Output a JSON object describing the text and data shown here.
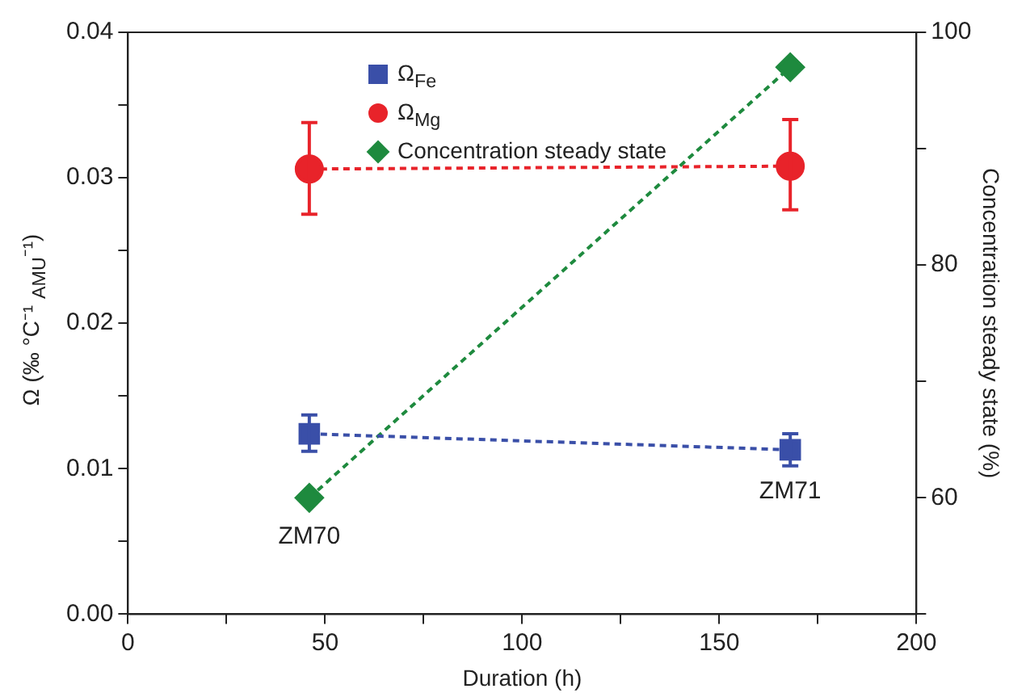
{
  "chart_data": {
    "type": "line",
    "xlabel": "Duration (h)",
    "ylabel": "Ω (‰ °C⁻¹ $_{AMU}$⁻¹)",
    "y2label": "Concentration steady state (%)",
    "xlim": [
      0,
      200
    ],
    "xticks": [
      0,
      {
        "value": 25,
        "label": null
      },
      50,
      {
        "value": 75,
        "label": null
      },
      100,
      {
        "value": 125,
        "label": null
      },
      150,
      {
        "value": 175,
        "label": null
      },
      200
    ],
    "ylim": [
      0,
      0.04
    ],
    "yticks": [
      {
        "value": 0,
        "label": "0.00"
      },
      {
        "value": 0.005,
        "label": null
      },
      0.01,
      {
        "value": 0.015,
        "label": null
      },
      0.02,
      {
        "value": 0.025,
        "label": null
      },
      0.03,
      {
        "value": 0.035,
        "label": null
      },
      0.04
    ],
    "y2lim": [
      50,
      100
    ],
    "y2ticks": [
      {
        "value": 50,
        "label": null
      },
      60,
      {
        "value": 70,
        "label": null
      },
      80,
      {
        "value": 90,
        "label": null
      },
      100
    ],
    "x": [
      46,
      168
    ],
    "grid": false,
    "legend": "top",
    "line_style": "dashed",
    "series": [
      {
        "name": "Ω$_{Fe}$",
        "color": "#3a4fa8",
        "marker": "square",
        "values": [
          0.0124,
          0.0113
        ],
        "errors": [
          [
            0.0112,
            0.0137
          ],
          [
            0.0102,
            0.0124
          ]
        ]
      },
      {
        "name": "Ω$_{Mg}$",
        "color": "#e8232a",
        "marker": "circle",
        "values": [
          0.0306,
          0.0308
        ],
        "errors": [
          [
            0.0275,
            0.0338
          ],
          [
            0.0278,
            0.034
          ]
        ]
      },
      {
        "name": "Concentration steady state",
        "color": "#1e8a3e",
        "marker": "diamond",
        "axis": "y2",
        "values": [
          60,
          97
        ]
      }
    ],
    "annotations": [
      "ZM70",
      "ZM71"
    ]
  }
}
